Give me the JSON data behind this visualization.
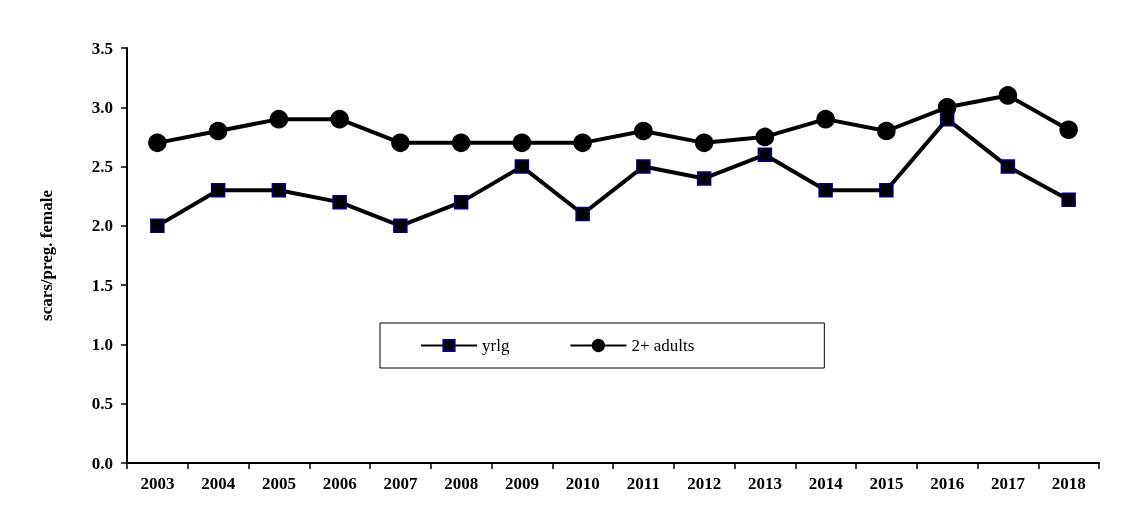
{
  "chart_data": {
    "type": "line",
    "ylabel": "scars/preg. female",
    "categories": [
      "2003",
      "2004",
      "2005",
      "2006",
      "2007",
      "2008",
      "2009",
      "2010",
      "2011",
      "2012",
      "2013",
      "2014",
      "2015",
      "2016",
      "2017",
      "2018"
    ],
    "series": [
      {
        "name": "yrlg",
        "color": "#000000",
        "marker": "square",
        "values": [
          2.0,
          2.3,
          2.3,
          2.2,
          2.0,
          2.2,
          2.5,
          2.1,
          2.5,
          2.4,
          2.6,
          2.3,
          2.3,
          2.9,
          2.5,
          2.22
        ]
      },
      {
        "name": "2+ adults",
        "color": "#000000",
        "marker": "circle",
        "values": [
          2.7,
          2.8,
          2.9,
          2.9,
          2.7,
          2.7,
          2.7,
          2.7,
          2.8,
          2.7,
          2.75,
          2.9,
          2.8,
          3.0,
          3.1,
          2.81
        ]
      }
    ],
    "ylim": [
      0,
      3.5
    ],
    "yticks": [
      {
        "value": 0,
        "label": "0.0"
      },
      0.5,
      {
        "value": 1,
        "label": "1.0"
      },
      1.5,
      {
        "value": 2,
        "label": "2.0"
      },
      2.5,
      {
        "value": 3,
        "label": "3.0"
      },
      3.5
    ],
    "grid": false,
    "legend": "center",
    "line_style": "solid"
  }
}
